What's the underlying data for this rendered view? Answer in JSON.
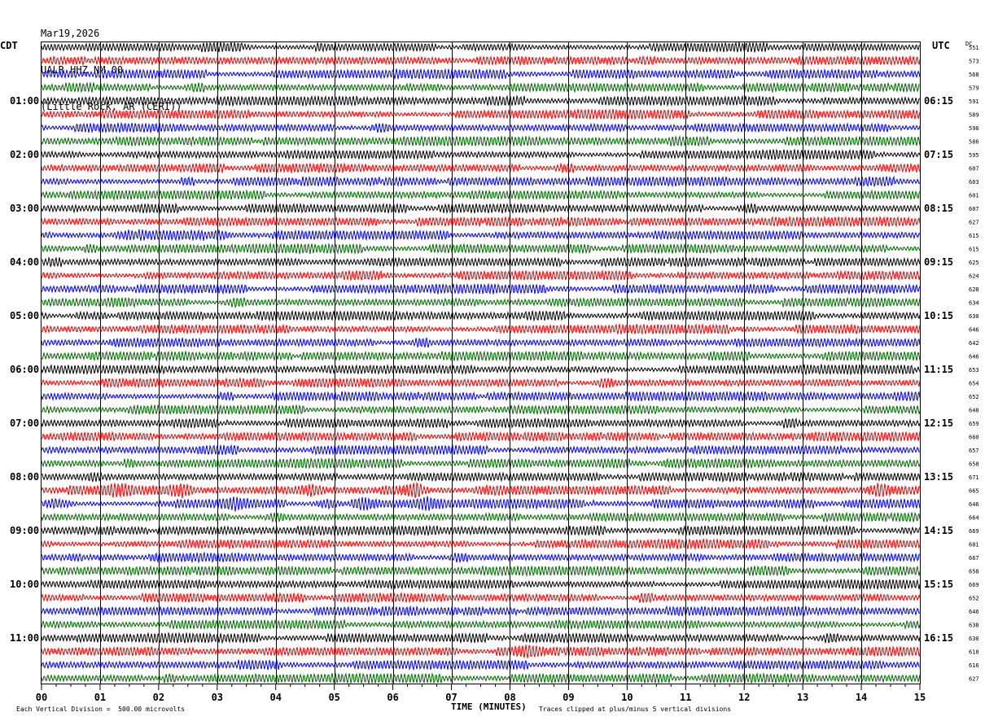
{
  "header": {
    "date": "Mar19,2026",
    "station": "UALR HHZ NM 00",
    "location": "(Little Rock, AR (CERI))"
  },
  "corner_labels": {
    "left": "CDT",
    "right": "UTC",
    "dc": "DC"
  },
  "footer": {
    "scale": "Each Vertical Division =  500.00 microvolts",
    "xtitle": "TIME (MINUTES)",
    "clip": "Traces clipped at plus/minus 5 vertical divisions"
  },
  "chart_data": {
    "type": "line",
    "title": "UALR HHZ NM 00",
    "xlabel": "TIME (MINUTES)",
    "xlim": [
      0,
      15
    ],
    "x_ticks": [
      "00",
      "01",
      "02",
      "03",
      "04",
      "05",
      "06",
      "07",
      "08",
      "09",
      "10",
      "11",
      "12",
      "13",
      "14",
      "15"
    ],
    "left_hour_labels": [
      "01:00",
      "02:00",
      "03:00",
      "04:00",
      "05:00",
      "06:00",
      "07:00",
      "08:00",
      "09:00",
      "10:00",
      "11:00"
    ],
    "right_hour_labels": [
      "06:15",
      "07:15",
      "08:15",
      "09:15",
      "10:15",
      "11:15",
      "12:15",
      "13:15",
      "14:15",
      "15:15",
      "16:15"
    ],
    "trace_colors": [
      "#000000",
      "#ee0000",
      "#0000ee",
      "#006600"
    ],
    "dc_offsets": [
      551,
      573,
      568,
      579,
      591,
      589,
      590,
      586,
      595,
      607,
      603,
      601,
      607,
      627,
      615,
      615,
      625,
      624,
      628,
      634,
      630,
      646,
      642,
      646,
      653,
      654,
      652,
      648,
      659,
      660,
      657,
      658,
      671,
      665,
      646,
      664,
      669,
      681,
      667,
      658,
      669,
      652,
      646,
      638,
      630,
      618,
      616,
      627
    ],
    "grid": true,
    "gridlines": "vertical at each minute",
    "noise_bursts": [
      {
        "trace_row": 33,
        "times_min": [
          1.3,
          2.4,
          4.6,
          6.4,
          7.6,
          14.3
        ]
      },
      {
        "trace_row": 34,
        "times_min": [
          0.3,
          3.3,
          4.9,
          6.6,
          5.5
        ]
      },
      {
        "trace_row": 45,
        "times_min": [
          8.3
        ]
      },
      {
        "trace_row": 14,
        "times_min": [
          1.5,
          3.0
        ]
      }
    ]
  }
}
